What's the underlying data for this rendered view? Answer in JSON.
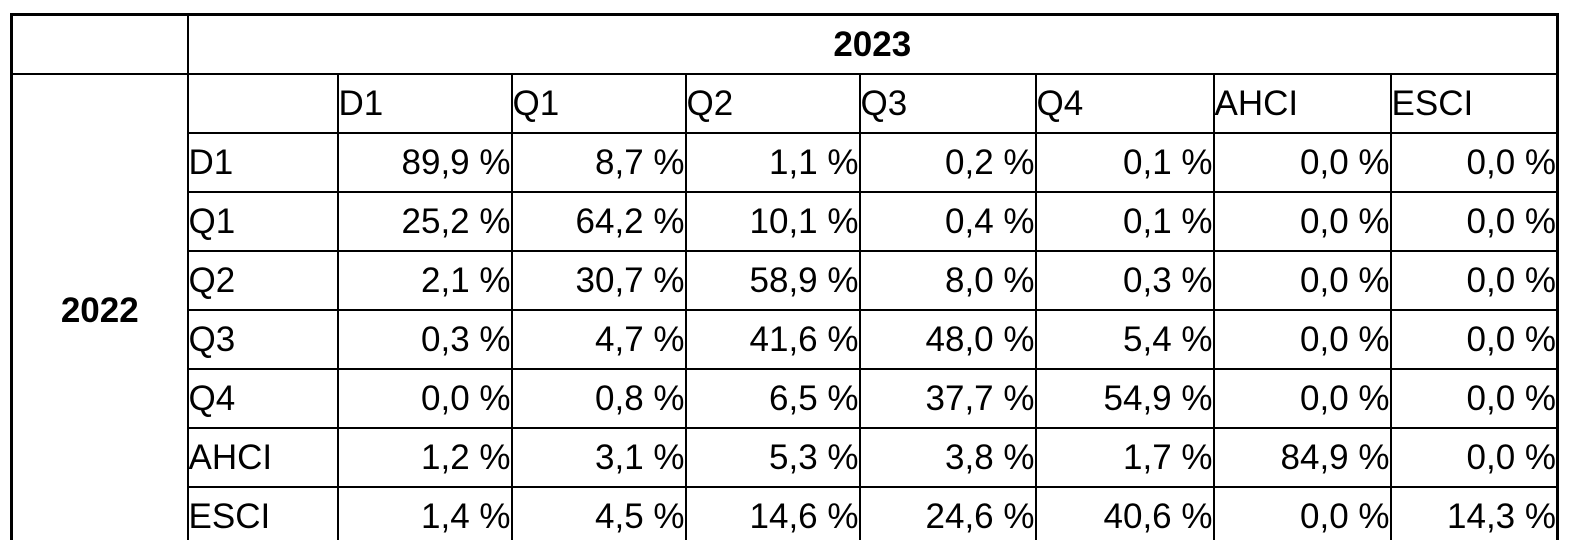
{
  "table": {
    "column_year": "2023",
    "row_year": "2022",
    "columns": [
      "D1",
      "Q1",
      "Q2",
      "Q3",
      "Q4",
      "AHCI",
      "ESCI"
    ],
    "rows": [
      {
        "label": "D1",
        "values": [
          "89,9 %",
          "8,7 %",
          "1,1 %",
          "0,2 %",
          "0,1 %",
          "0,0 %",
          "0,0 %"
        ]
      },
      {
        "label": "Q1",
        "values": [
          "25,2 %",
          "64,2 %",
          "10,1 %",
          "0,4 %",
          "0,1 %",
          "0,0 %",
          "0,0 %"
        ]
      },
      {
        "label": "Q2",
        "values": [
          "2,1 %",
          "30,7 %",
          "58,9 %",
          "8,0 %",
          "0,3 %",
          "0,0 %",
          "0,0 %"
        ]
      },
      {
        "label": "Q3",
        "values": [
          "0,3 %",
          "4,7 %",
          "41,6 %",
          "48,0 %",
          "5,4 %",
          "0,0 %",
          "0,0 %"
        ]
      },
      {
        "label": "Q4",
        "values": [
          "0,0 %",
          "0,8 %",
          "6,5 %",
          "37,7 %",
          "54,9 %",
          "0,0 %",
          "0,0 %"
        ]
      },
      {
        "label": "AHCI",
        "values": [
          "1,2 %",
          "3,1 %",
          "5,3 %",
          "3,8 %",
          "1,7 %",
          "84,9 %",
          "0,0 %"
        ]
      },
      {
        "label": "ESCI",
        "values": [
          "1,4 %",
          "4,5 %",
          "14,6 %",
          "24,6 %",
          "40,6 %",
          "0,0 %",
          "14,3 %"
        ]
      }
    ]
  }
}
